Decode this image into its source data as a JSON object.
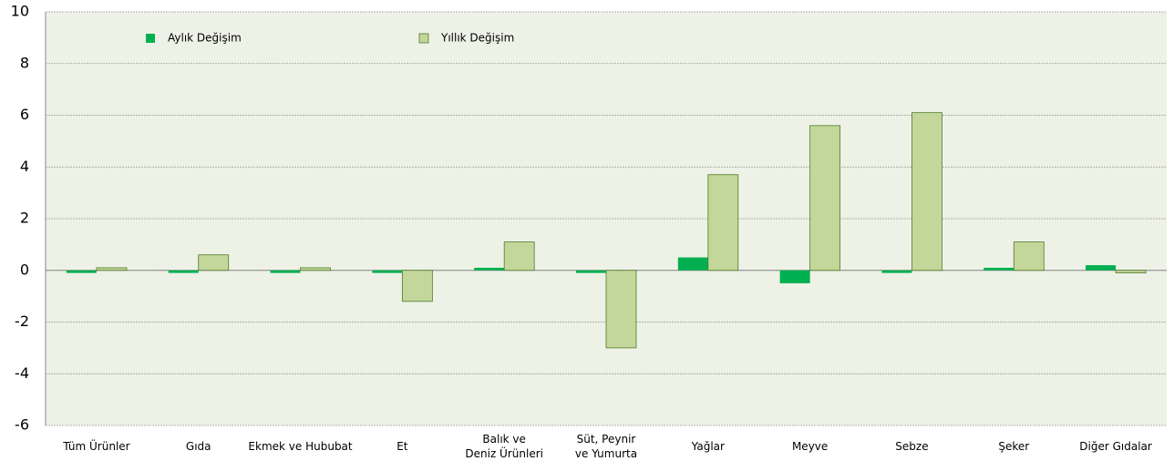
{
  "chart_data": {
    "type": "bar",
    "categories": [
      "Tüm Ürünler",
      "Gıda",
      "Ekmek ve Hububat",
      "Et",
      "Balık ve\nDeniz Ürünleri",
      "Süt, Peynir\nve Yumurta",
      "Yağlar",
      "Meyve",
      "Sebze",
      "Şeker",
      "Diğer Gıdalar"
    ],
    "series": [
      {
        "name": "Aylık Değişim",
        "color": "#00b050",
        "values": [
          -0.1,
          -0.1,
          -0.1,
          -0.1,
          0.1,
          -0.1,
          0.5,
          -0.5,
          -0.1,
          0.1,
          0.2
        ]
      },
      {
        "name": "Yıllık Değişim",
        "color": "#c4d79b",
        "values": [
          0.1,
          0.6,
          0.1,
          -1.2,
          1.1,
          -3.0,
          3.7,
          5.6,
          6.1,
          1.1,
          -0.1
        ]
      }
    ],
    "ylim": [
      -6,
      10
    ],
    "yticks": [
      -6,
      -4,
      -2,
      0,
      2,
      4,
      6,
      8,
      10
    ],
    "grid": true,
    "legend": "top"
  }
}
